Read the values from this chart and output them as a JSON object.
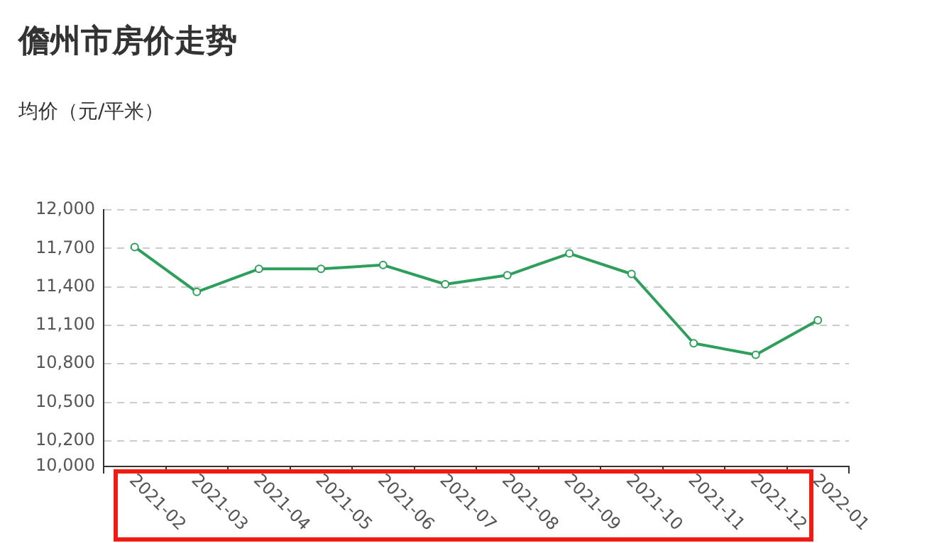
{
  "chart_data": {
    "type": "line",
    "title": "儋州市房价走势",
    "ylabel": "均价（元/平米）",
    "categories": [
      "2021-02",
      "2021-03",
      "2021-04",
      "2021-05",
      "2021-06",
      "2021-07",
      "2021-08",
      "2021-09",
      "2021-10",
      "2021-11",
      "2021-12",
      "2022-01"
    ],
    "values": [
      11710,
      11360,
      11540,
      11540,
      11570,
      11420,
      11490,
      11660,
      11500,
      10960,
      10870,
      11140
    ],
    "color": "#2e9e5b",
    "ylim": [
      10000,
      12000
    ],
    "yticks": [
      {
        "value": 10000,
        "label": "10,000"
      },
      {
        "value": 10200,
        "label": "10,200"
      },
      {
        "value": 10500,
        "label": "10,500"
      },
      {
        "value": 10800,
        "label": "10,800"
      },
      {
        "value": 11100,
        "label": "11,100"
      },
      {
        "value": 11400,
        "label": "11,400"
      },
      {
        "value": 11700,
        "label": "11,700"
      },
      {
        "value": 12000,
        "label": "12,000"
      }
    ],
    "grid": "y",
    "marker": "circle"
  }
}
